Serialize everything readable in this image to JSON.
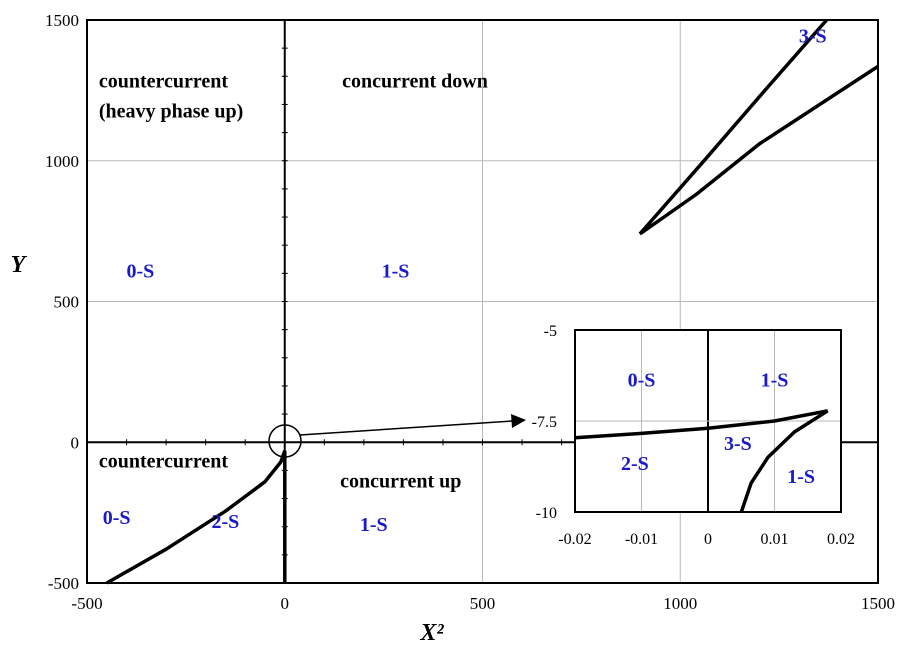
{
  "chart_data": [
    {
      "type": "line",
      "title": "",
      "xlabel": "X²",
      "ylabel": "Y",
      "xlim": [
        -500,
        1500
      ],
      "ylim": [
        -500,
        1500
      ],
      "xticks": [
        "-500",
        "0",
        "500",
        "1000",
        "1500"
      ],
      "yticks": [
        "-500",
        "0",
        "500",
        "1000",
        "1500"
      ],
      "grid": true,
      "regions": [
        {
          "label": "countercurrent\n(heavy phase up)",
          "x": -470,
          "y": 1260
        },
        {
          "label": "concurrent down",
          "x": 145,
          "y": 1260
        },
        {
          "label": "countercurrent",
          "x": -470,
          "y": -90
        },
        {
          "label": "concurrent up",
          "x": 140,
          "y": -160
        }
      ],
      "states": [
        {
          "label": "0-S",
          "x": -365,
          "y": 585
        },
        {
          "label": "1-S",
          "x": 280,
          "y": 585
        },
        {
          "label": "0-S",
          "x": -425,
          "y": -290
        },
        {
          "label": "2-S",
          "x": -150,
          "y": -305
        },
        {
          "label": "1-S",
          "x": 225,
          "y": -315
        },
        {
          "label": "3-S",
          "x": 1335,
          "y": 1420
        }
      ],
      "series": [
        {
          "values": [
            [
              -450,
              -500
            ],
            [
              -300,
              -380
            ],
            [
              -150,
              -245
            ],
            [
              -50,
              -140
            ],
            [
              -10,
              -70
            ],
            [
              0,
              -30
            ]
          ]
        },
        {
          "values": [
            [
              0,
              -30
            ],
            [
              0,
              -500
            ]
          ]
        },
        {
          "values": [
            [
              898,
              740
            ],
            [
              1060,
              1000
            ],
            [
              1220,
              1260
            ],
            [
              1370,
              1500
            ]
          ]
        },
        {
          "values": [
            [
              898,
              740
            ],
            [
              1040,
              880
            ],
            [
              1200,
              1060
            ],
            [
              1500,
              1335
            ]
          ]
        }
      ]
    },
    {
      "type": "line",
      "title": "",
      "xlim": [
        -0.02,
        0.02
      ],
      "ylim": [
        -10,
        -5
      ],
      "xticks": [
        "-0.02",
        "-0.01",
        "0",
        "0.01",
        "0.02"
      ],
      "yticks": [
        "-10",
        "-7.5",
        "-5"
      ],
      "grid": true,
      "states": [
        {
          "label": "0-S",
          "x": -0.01,
          "y": -6.55
        },
        {
          "label": "1-S",
          "x": 0.01,
          "y": -6.55
        },
        {
          "label": "3-S",
          "x": 0.0045,
          "y": -8.3
        },
        {
          "label": "2-S",
          "x": -0.011,
          "y": -8.85
        },
        {
          "label": "1-S",
          "x": 0.014,
          "y": -9.2
        }
      ],
      "series": [
        {
          "values": [
            [
              -0.02,
              -7.96
            ],
            [
              -0.01,
              -7.84
            ],
            [
              0,
              -7.7
            ],
            [
              0.01,
              -7.5
            ],
            [
              0.018,
              -7.22
            ]
          ]
        },
        {
          "values": [
            [
              0.005,
              -10
            ],
            [
              0.0065,
              -9.2
            ],
            [
              0.009,
              -8.5
            ],
            [
              0.013,
              -7.8
            ],
            [
              0.018,
              -7.22
            ]
          ]
        }
      ]
    }
  ]
}
